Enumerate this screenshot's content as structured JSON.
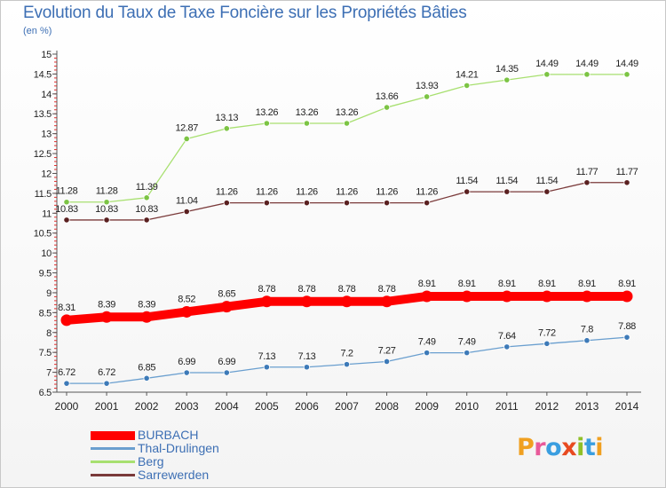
{
  "header": {
    "title": "Evolution du Taux de Taxe Foncière sur les Propriétés Bâties",
    "unit": "(en %)"
  },
  "logo": {
    "text": "Proxiti",
    "letters": [
      {
        "ch": "P",
        "color": "#f0a020"
      },
      {
        "ch": "r",
        "color": "#e85a9a"
      },
      {
        "ch": "o",
        "color": "#3a9ee0"
      },
      {
        "ch": "x",
        "color": "#e84a20"
      },
      {
        "ch": "i",
        "color": "#90c028"
      },
      {
        "ch": "t",
        "color": "#3a9ee0"
      },
      {
        "ch": "i",
        "color": "#f0a020"
      }
    ]
  },
  "chart_data": {
    "type": "line",
    "title": "Evolution du Taux de Taxe Foncière sur les Propriétés Bâties",
    "ylabel": "(en %)",
    "xlabel": "",
    "categories": [
      "2000",
      "2001",
      "2002",
      "2003",
      "2004",
      "2005",
      "2006",
      "2007",
      "2008",
      "2009",
      "2010",
      "2011",
      "2012",
      "2013",
      "2014"
    ],
    "ylim": [
      6.5,
      15
    ],
    "ytick_step": 0.5,
    "y_ticks": [
      "6.5",
      "7",
      "7.5",
      "8",
      "8.5",
      "9",
      "9.5",
      "10",
      "10.5",
      "11",
      "11.5",
      "12",
      "12.5",
      "13",
      "13.5",
      "14",
      "14.5",
      "15"
    ],
    "grid": false,
    "legend_position": "bottom-left",
    "series": [
      {
        "name": "BURBACH",
        "color": "#ff0000",
        "marker": "#ff0000",
        "emphasis": true,
        "values": [
          8.31,
          8.39,
          8.39,
          8.52,
          8.65,
          8.78,
          8.78,
          8.78,
          8.78,
          8.91,
          8.91,
          8.91,
          8.91,
          8.91,
          8.91
        ],
        "labels": [
          "8.31",
          "8.39",
          "8.39",
          "8.52",
          "8.65",
          "8.78",
          "8.78",
          "8.78",
          "8.78",
          "8.91",
          "8.91",
          "8.91",
          "8.91",
          "8.91",
          "8.91"
        ]
      },
      {
        "name": "Thal-Drulingen",
        "color": "#6a9fcf",
        "marker": "#3d7ab8",
        "emphasis": false,
        "values": [
          6.72,
          6.72,
          6.85,
          6.99,
          6.99,
          7.13,
          7.13,
          7.2,
          7.27,
          7.49,
          7.49,
          7.64,
          7.72,
          7.8,
          7.88
        ],
        "labels": [
          "6.72",
          "6.72",
          "6.85",
          "6.99",
          "6.99",
          "7.13",
          "7.13",
          "7.2",
          "7.27",
          "7.49",
          "7.49",
          "7.64",
          "7.72",
          "7.8",
          "7.88"
        ]
      },
      {
        "name": "Berg",
        "color": "#a8e070",
        "marker": "#7cc444",
        "emphasis": false,
        "values": [
          11.28,
          11.28,
          11.39,
          12.87,
          13.13,
          13.26,
          13.26,
          13.26,
          13.66,
          13.93,
          14.21,
          14.35,
          14.49,
          14.49,
          14.49
        ],
        "labels": [
          "11.28",
          "11.28",
          "11.39",
          "12.87",
          "13.13",
          "13.26",
          "13.26",
          "13.26",
          "13.66",
          "13.93",
          "14.21",
          "14.35",
          "14.49",
          "14.49",
          "14.49"
        ]
      },
      {
        "name": "Sarrewerden",
        "color": "#7a3a3a",
        "marker": "#5a2020",
        "emphasis": false,
        "values": [
          10.83,
          10.83,
          10.83,
          11.04,
          11.26,
          11.26,
          11.26,
          11.26,
          11.26,
          11.26,
          11.54,
          11.54,
          11.54,
          11.77,
          11.77
        ],
        "labels": [
          "10.83",
          "10.83",
          "10.83",
          "11.04",
          "11.26",
          "11.26",
          "11.26",
          "11.26",
          "11.26",
          "11.26",
          "11.54",
          "11.54",
          "11.54",
          "11.77",
          "11.77"
        ]
      }
    ]
  }
}
